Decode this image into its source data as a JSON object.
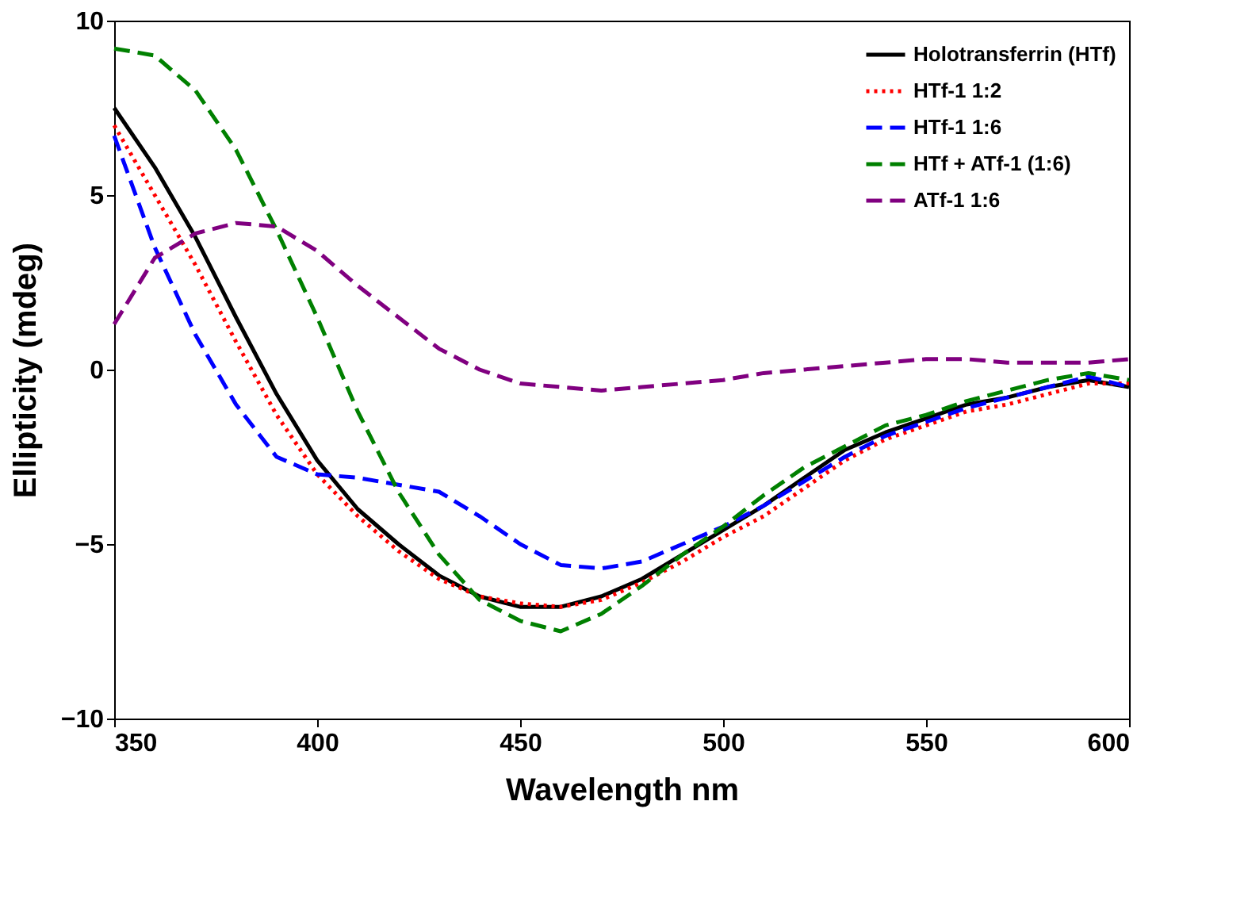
{
  "chart_data": {
    "type": "line",
    "xlabel": "Wavelength nm",
    "ylabel": "Ellipticity (mdeg)",
    "x": [
      350,
      360,
      370,
      380,
      390,
      400,
      410,
      420,
      430,
      440,
      450,
      460,
      470,
      480,
      490,
      500,
      510,
      520,
      530,
      540,
      550,
      560,
      570,
      580,
      590,
      600
    ],
    "xlim": [
      350,
      600
    ],
    "xticks": [
      350,
      400,
      450,
      500,
      550,
      600
    ],
    "ylim": [
      -10,
      10
    ],
    "yticks": [
      -10,
      -5,
      0,
      5,
      10
    ],
    "grid": false,
    "legend": "top right",
    "marker": "none",
    "series": [
      {
        "name": "Holotransferrin (HTf)",
        "color": "#000000",
        "line_style": "solid",
        "values": [
          7.5,
          5.8,
          3.8,
          1.5,
          -0.7,
          -2.6,
          -4.0,
          -5.0,
          -5.9,
          -6.5,
          -6.8,
          -6.8,
          -6.5,
          -6.0,
          -5.3,
          -4.6,
          -3.9,
          -3.1,
          -2.3,
          -1.8,
          -1.4,
          -1.0,
          -0.8,
          -0.5,
          -0.3,
          -0.5
        ]
      },
      {
        "name": "HTf-1 1:2",
        "color": "#ff0000",
        "line_style": "dotted",
        "values": [
          7.0,
          5.0,
          3.0,
          0.8,
          -1.3,
          -3.0,
          -4.2,
          -5.2,
          -6.0,
          -6.5,
          -6.7,
          -6.8,
          -6.6,
          -6.1,
          -5.5,
          -4.8,
          -4.2,
          -3.4,
          -2.6,
          -2.0,
          -1.6,
          -1.2,
          -1.0,
          -0.7,
          -0.4,
          -0.4
        ]
      },
      {
        "name": "HTf-1 1:6",
        "color": "#0000ff",
        "line_style": "dashed",
        "values": [
          6.7,
          3.5,
          1.0,
          -1.0,
          -2.5,
          -3.0,
          -3.1,
          -3.3,
          -3.5,
          -4.2,
          -5.0,
          -5.6,
          -5.7,
          -5.5,
          -5.0,
          -4.5,
          -3.9,
          -3.2,
          -2.5,
          -1.9,
          -1.5,
          -1.1,
          -0.8,
          -0.5,
          -0.2,
          -0.5
        ]
      },
      {
        "name": "HTf + ATf-1 (1:6)",
        "color": "#008000",
        "line_style": "dashed",
        "values": [
          9.2,
          9.0,
          8.0,
          6.3,
          4.0,
          1.5,
          -1.2,
          -3.5,
          -5.3,
          -6.6,
          -7.2,
          -7.5,
          -7.0,
          -6.2,
          -5.3,
          -4.5,
          -3.6,
          -2.8,
          -2.2,
          -1.6,
          -1.3,
          -0.9,
          -0.6,
          -0.3,
          -0.1,
          -0.3
        ]
      },
      {
        "name": "ATf-1 1:6",
        "color": "#800080",
        "line_style": "dashed",
        "values": [
          1.3,
          3.2,
          3.9,
          4.2,
          4.1,
          3.4,
          2.4,
          1.5,
          0.6,
          0.0,
          -0.4,
          -0.5,
          -0.6,
          -0.5,
          -0.4,
          -0.3,
          -0.1,
          0.0,
          0.1,
          0.2,
          0.3,
          0.3,
          0.2,
          0.2,
          0.2,
          0.3
        ]
      }
    ]
  }
}
